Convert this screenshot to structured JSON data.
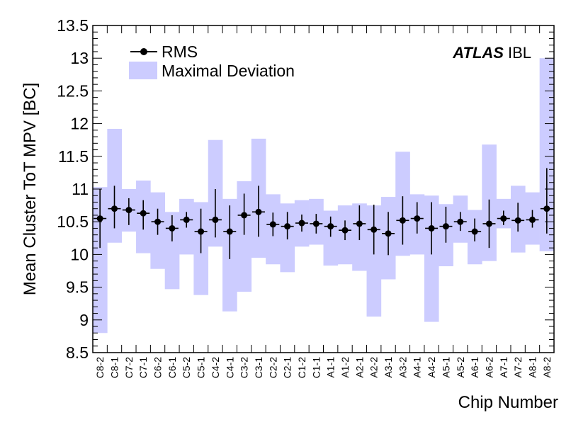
{
  "chart_data": {
    "type": "scatter",
    "title": "",
    "xlabel": "Chip Number",
    "ylabel": "Mean Cluster ToT MPV [BC]",
    "ylim": [
      8.5,
      13.5
    ],
    "y_ticks": [
      "8.5",
      "9",
      "9.5",
      "10",
      "10.5",
      "11",
      "11.5",
      "12",
      "12.5",
      "13",
      "13.5"
    ],
    "categories": [
      "C8-2",
      "C8-1",
      "C7-2",
      "C7-1",
      "C6-2",
      "C6-1",
      "C5-2",
      "C5-1",
      "C4-2",
      "C4-1",
      "C3-2",
      "C3-1",
      "C2-2",
      "C2-1",
      "C1-2",
      "C1-1",
      "A1-1",
      "A1-2",
      "A2-1",
      "A2-2",
      "A3-1",
      "A3-2",
      "A4-1",
      "A4-2",
      "A5-1",
      "A5-2",
      "A6-1",
      "A6-2",
      "A7-1",
      "A7-2",
      "A8-1",
      "A8-2"
    ],
    "series": [
      {
        "name": "RMS",
        "values": [
          10.55,
          10.7,
          10.68,
          10.63,
          10.5,
          10.4,
          10.53,
          10.35,
          10.53,
          10.35,
          10.6,
          10.65,
          10.46,
          10.43,
          10.48,
          10.47,
          10.43,
          10.37,
          10.47,
          10.38,
          10.32,
          10.52,
          10.55,
          10.4,
          10.43,
          10.5,
          10.35,
          10.47,
          10.55,
          10.52,
          10.53,
          10.7
        ],
        "err_low": [
          0.45,
          0.3,
          0.23,
          0.25,
          0.2,
          0.2,
          0.12,
          0.33,
          0.27,
          0.42,
          0.3,
          0.38,
          0.18,
          0.2,
          0.13,
          0.15,
          0.16,
          0.15,
          0.25,
          0.38,
          0.33,
          0.37,
          0.23,
          0.4,
          0.25,
          0.14,
          0.15,
          0.37,
          0.1,
          0.17,
          0.12,
          0.38
        ],
        "err_high": [
          0.45,
          0.35,
          0.18,
          0.2,
          0.2,
          0.2,
          0.12,
          0.35,
          0.47,
          0.4,
          0.33,
          0.4,
          0.18,
          0.22,
          0.13,
          0.15,
          0.15,
          0.15,
          0.28,
          0.38,
          0.33,
          0.37,
          0.25,
          0.4,
          0.3,
          0.15,
          0.2,
          0.37,
          0.12,
          0.27,
          0.15,
          0.62
        ]
      },
      {
        "name": "Maximal Deviation",
        "band_low": [
          8.8,
          10.18,
          10.35,
          10.02,
          9.78,
          9.47,
          10.0,
          9.38,
          10.12,
          9.13,
          9.43,
          9.95,
          9.85,
          9.73,
          10.12,
          10.15,
          9.83,
          9.85,
          9.75,
          9.05,
          9.62,
          9.98,
          10.0,
          8.97,
          9.82,
          10.18,
          9.85,
          9.9,
          10.4,
          10.03,
          10.15,
          10.05
        ],
        "band_high": [
          11.03,
          11.92,
          11.0,
          11.13,
          10.95,
          10.65,
          10.85,
          10.8,
          11.75,
          10.85,
          11.12,
          11.77,
          10.92,
          10.78,
          10.83,
          10.85,
          10.67,
          10.75,
          10.78,
          10.75,
          10.88,
          11.57,
          10.92,
          10.9,
          10.77,
          10.9,
          10.68,
          11.68,
          10.85,
          11.05,
          10.95,
          13.0
        ]
      }
    ],
    "legend": {
      "placement": "top-left",
      "entries": [
        "RMS",
        "Maximal Deviation"
      ]
    },
    "annotation": {
      "bold": "ATLAS",
      "normal": "IBL",
      "placement": "top-right"
    },
    "colors": {
      "band": "#ccccff",
      "points": "#000000"
    }
  }
}
